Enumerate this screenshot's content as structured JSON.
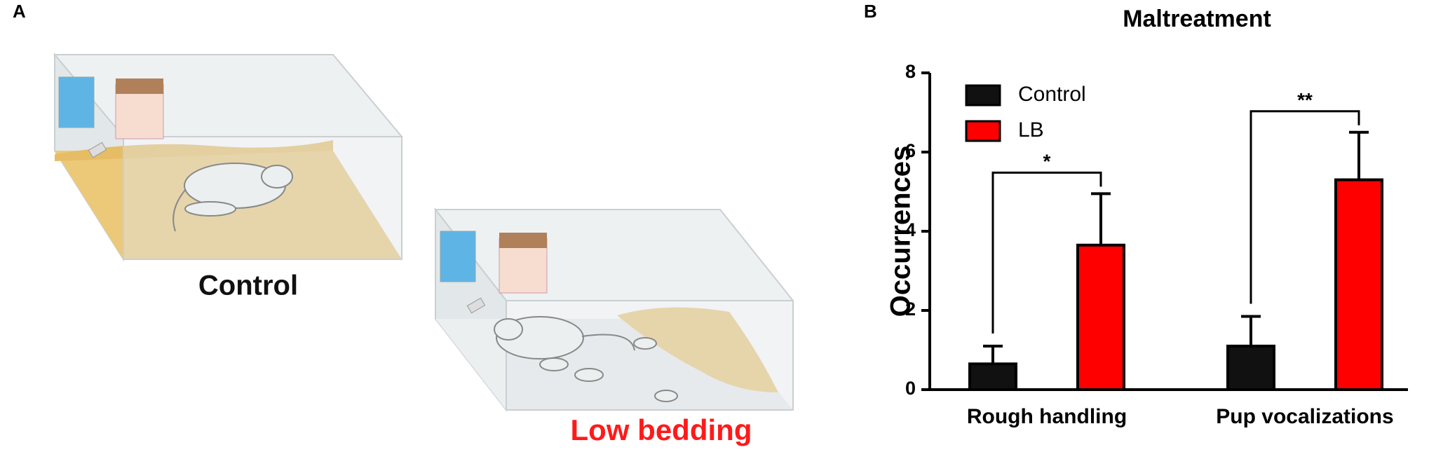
{
  "panel_labels": [
    "A",
    "B"
  ],
  "illustration": {
    "labels": [
      "Control",
      "Low bedding"
    ]
  },
  "chart_data": {
    "type": "bar",
    "title": "Maltreatment",
    "y_label": "Occurrences",
    "categories": [
      "Rough handling",
      "Pup vocalizations"
    ],
    "series": [
      {
        "name": "Control",
        "color": "#111111",
        "values": [
          0.65,
          1.1
        ],
        "errors": [
          0.45,
          0.75
        ]
      },
      {
        "name": "LB",
        "color": "#ff0000",
        "values": [
          3.65,
          5.3
        ],
        "errors": [
          1.3,
          1.2
        ]
      }
    ],
    "annotations": [
      "*",
      "**"
    ],
    "ylim": [
      0,
      8
    ],
    "yticks": [
      0,
      2,
      4,
      6,
      8
    ],
    "legend": "top-left",
    "grid": false
  }
}
